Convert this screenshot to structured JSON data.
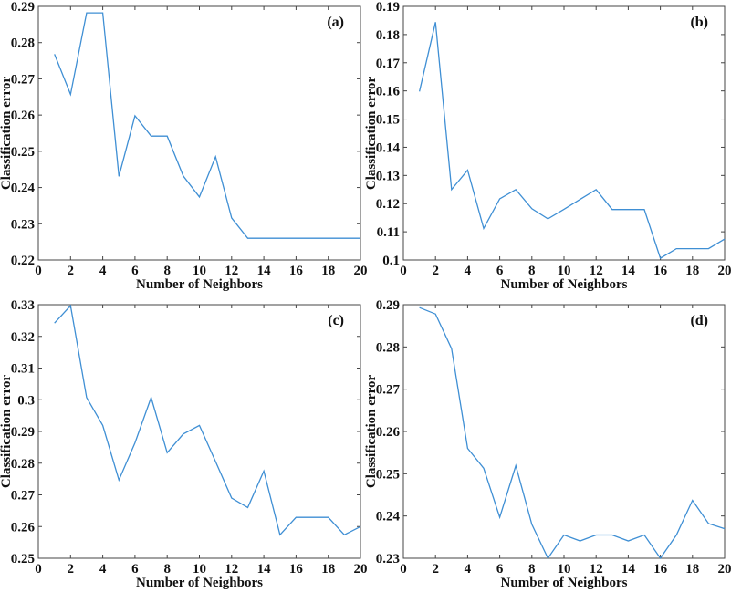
{
  "chart_data": [
    {
      "type": "line",
      "panel_label": "(a)",
      "xlabel": "Number of Neighbors",
      "ylabel": "Classification error",
      "xlim": [
        0,
        20
      ],
      "ylim": [
        0.22,
        0.29
      ],
      "xticks": [
        "0",
        "2",
        "4",
        "6",
        "8",
        "10",
        "12",
        "14",
        "16",
        "18",
        "20"
      ],
      "yticks": [
        "0.22",
        "0.23",
        "0.24",
        "0.25",
        "0.26",
        "0.27",
        "0.28",
        "0.29"
      ],
      "x": [
        1,
        2,
        3,
        4,
        5,
        6,
        7,
        8,
        9,
        10,
        11,
        12,
        13,
        14,
        15,
        16,
        17,
        18,
        19,
        20
      ],
      "y": [
        0.2768,
        0.2657,
        0.2882,
        0.2882,
        0.2431,
        0.2598,
        0.2542,
        0.2542,
        0.2432,
        0.2374,
        0.2485,
        0.2316,
        0.226,
        0.226,
        0.226,
        0.226,
        0.226,
        0.226,
        0.226,
        0.226
      ],
      "color": "#3f8fd4"
    },
    {
      "type": "line",
      "panel_label": "(b)",
      "xlabel": "Number of Neighbors",
      "ylabel": "Classification error",
      "xlim": [
        0,
        20
      ],
      "ylim": [
        0.1,
        0.19
      ],
      "xticks": [
        "0",
        "2",
        "4",
        "6",
        "8",
        "10",
        "12",
        "14",
        "16",
        "18",
        "20"
      ],
      "yticks": [
        "0.1",
        "0.11",
        "0.12",
        "0.13",
        "0.14",
        "0.15",
        "0.16",
        "0.17",
        "0.18",
        "0.19"
      ],
      "x": [
        1,
        2,
        3,
        4,
        5,
        6,
        7,
        8,
        9,
        10,
        11,
        12,
        13,
        14,
        15,
        16,
        17,
        18,
        19,
        20
      ],
      "y": [
        0.1598,
        0.1844,
        0.125,
        0.1319,
        0.1112,
        0.1217,
        0.125,
        0.1182,
        0.1146,
        0.118,
        0.1215,
        0.125,
        0.1179,
        0.1179,
        0.1179,
        0.1006,
        0.104,
        0.104,
        0.104,
        0.1074
      ],
      "color": "#3f8fd4"
    },
    {
      "type": "line",
      "panel_label": "(c)",
      "xlabel": "Number of Neighbors",
      "ylabel": "Classification error",
      "xlim": [
        0,
        20
      ],
      "ylim": [
        0.25,
        0.33
      ],
      "xticks": [
        "0",
        "2",
        "4",
        "6",
        "8",
        "10",
        "12",
        "14",
        "16",
        "18",
        "20"
      ],
      "yticks": [
        "0.25",
        "0.26",
        "0.27",
        "0.28",
        "0.29",
        "0.3",
        "0.31",
        "0.32",
        "0.33"
      ],
      "x": [
        1,
        2,
        3,
        4,
        5,
        6,
        7,
        8,
        9,
        10,
        11,
        12,
        13,
        14,
        15,
        16,
        17,
        18,
        19,
        20
      ],
      "y": [
        0.3242,
        0.3297,
        0.3007,
        0.2919,
        0.2747,
        0.2864,
        0.3007,
        0.2833,
        0.2892,
        0.2919,
        0.2805,
        0.269,
        0.266,
        0.2775,
        0.2574,
        0.2629,
        0.2629,
        0.2629,
        0.2574,
        0.26
      ],
      "color": "#3f8fd4"
    },
    {
      "type": "line",
      "panel_label": "(d)",
      "xlabel": "Number of Neighbors",
      "ylabel": "Classification error",
      "xlim": [
        0,
        20
      ],
      "ylim": [
        0.23,
        0.29
      ],
      "xticks": [
        "0",
        "2",
        "4",
        "6",
        "8",
        "10",
        "12",
        "14",
        "16",
        "18",
        "20"
      ],
      "yticks": [
        "0.23",
        "0.24",
        "0.25",
        "0.26",
        "0.27",
        "0.28",
        "0.29"
      ],
      "x": [
        1,
        2,
        3,
        4,
        5,
        6,
        7,
        8,
        9,
        10,
        11,
        12,
        13,
        14,
        15,
        16,
        17,
        18,
        19,
        20
      ],
      "y": [
        0.2893,
        0.2878,
        0.2796,
        0.256,
        0.2513,
        0.2397,
        0.2519,
        0.238,
        0.23,
        0.2355,
        0.2341,
        0.2355,
        0.2355,
        0.2341,
        0.2355,
        0.23,
        0.2355,
        0.2437,
        0.2382,
        0.237
      ],
      "color": "#3f8fd4"
    }
  ]
}
